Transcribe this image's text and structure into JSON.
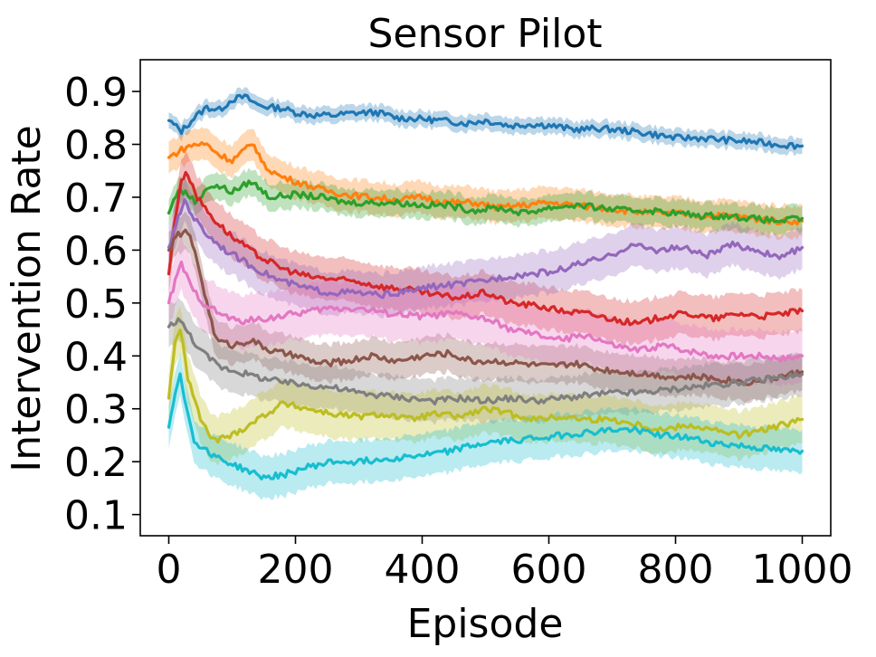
{
  "chart_data": {
    "type": "line",
    "title": "Sensor Pilot",
    "xlabel": "Episode",
    "ylabel": "Intervention Rate",
    "xlim": [
      -45,
      1045
    ],
    "ylim": [
      0.06,
      0.96
    ],
    "xticks": [
      0,
      200,
      400,
      600,
      800,
      1000
    ],
    "yticks": [
      0.1,
      0.2,
      0.3,
      0.4,
      0.5,
      0.6,
      0.7,
      0.8,
      0.9
    ],
    "xtick_labels": [
      "0",
      "200",
      "400",
      "600",
      "800",
      "1000"
    ],
    "ytick_labels": [
      "0.1",
      "0.2",
      "0.3",
      "0.4",
      "0.5",
      "0.6",
      "0.7",
      "0.8",
      "0.9"
    ],
    "grid": false,
    "legend": "none",
    "series": [
      {
        "color": "#1f77b4",
        "band": 0.015,
        "points": [
          [
            0,
            0.845
          ],
          [
            20,
            0.825
          ],
          [
            40,
            0.85
          ],
          [
            60,
            0.87
          ],
          [
            80,
            0.865
          ],
          [
            100,
            0.885
          ],
          [
            120,
            0.89
          ],
          [
            140,
            0.875
          ],
          [
            160,
            0.87
          ],
          [
            180,
            0.868
          ],
          [
            200,
            0.86
          ],
          [
            230,
            0.855
          ],
          [
            260,
            0.855
          ],
          [
            300,
            0.86
          ],
          [
            330,
            0.86
          ],
          [
            360,
            0.85
          ],
          [
            400,
            0.848
          ],
          [
            430,
            0.845
          ],
          [
            470,
            0.84
          ],
          [
            500,
            0.845
          ],
          [
            540,
            0.835
          ],
          [
            570,
            0.838
          ],
          [
            600,
            0.836
          ],
          [
            640,
            0.828
          ],
          [
            680,
            0.83
          ],
          [
            720,
            0.826
          ],
          [
            760,
            0.82
          ],
          [
            800,
            0.812
          ],
          [
            840,
            0.812
          ],
          [
            880,
            0.808
          ],
          [
            920,
            0.805
          ],
          [
            960,
            0.8
          ],
          [
            1000,
            0.797
          ]
        ]
      },
      {
        "color": "#ff7f0e",
        "band": 0.03,
        "points": [
          [
            0,
            0.775
          ],
          [
            20,
            0.79
          ],
          [
            40,
            0.8
          ],
          [
            60,
            0.8
          ],
          [
            80,
            0.78
          ],
          [
            100,
            0.77
          ],
          [
            120,
            0.79
          ],
          [
            135,
            0.8
          ],
          [
            150,
            0.76
          ],
          [
            175,
            0.74
          ],
          [
            200,
            0.73
          ],
          [
            240,
            0.715
          ],
          [
            280,
            0.705
          ],
          [
            320,
            0.7
          ],
          [
            360,
            0.695
          ],
          [
            400,
            0.7
          ],
          [
            440,
            0.69
          ],
          [
            480,
            0.69
          ],
          [
            520,
            0.68
          ],
          [
            560,
            0.685
          ],
          [
            600,
            0.69
          ],
          [
            640,
            0.685
          ],
          [
            680,
            0.68
          ],
          [
            720,
            0.675
          ],
          [
            760,
            0.67
          ],
          [
            800,
            0.67
          ],
          [
            840,
            0.665
          ],
          [
            880,
            0.665
          ],
          [
            920,
            0.66
          ],
          [
            960,
            0.655
          ],
          [
            1000,
            0.655
          ]
        ]
      },
      {
        "color": "#2ca02c",
        "band": 0.025,
        "points": [
          [
            0,
            0.67
          ],
          [
            15,
            0.715
          ],
          [
            30,
            0.705
          ],
          [
            45,
            0.69
          ],
          [
            60,
            0.72
          ],
          [
            80,
            0.72
          ],
          [
            100,
            0.71
          ],
          [
            130,
            0.73
          ],
          [
            160,
            0.7
          ],
          [
            200,
            0.705
          ],
          [
            240,
            0.7
          ],
          [
            280,
            0.69
          ],
          [
            320,
            0.69
          ],
          [
            360,
            0.69
          ],
          [
            400,
            0.685
          ],
          [
            440,
            0.685
          ],
          [
            480,
            0.675
          ],
          [
            520,
            0.68
          ],
          [
            560,
            0.67
          ],
          [
            600,
            0.68
          ],
          [
            640,
            0.685
          ],
          [
            680,
            0.68
          ],
          [
            720,
            0.675
          ],
          [
            760,
            0.675
          ],
          [
            800,
            0.67
          ],
          [
            840,
            0.665
          ],
          [
            880,
            0.665
          ],
          [
            920,
            0.66
          ],
          [
            960,
            0.655
          ],
          [
            1000,
            0.66
          ]
        ]
      },
      {
        "color": "#d62728",
        "band": 0.04,
        "points": [
          [
            0,
            0.555
          ],
          [
            10,
            0.66
          ],
          [
            20,
            0.735
          ],
          [
            30,
            0.745
          ],
          [
            45,
            0.7
          ],
          [
            70,
            0.66
          ],
          [
            100,
            0.625
          ],
          [
            140,
            0.59
          ],
          [
            180,
            0.565
          ],
          [
            220,
            0.55
          ],
          [
            260,
            0.545
          ],
          [
            300,
            0.54
          ],
          [
            340,
            0.53
          ],
          [
            380,
            0.525
          ],
          [
            420,
            0.515
          ],
          [
            460,
            0.51
          ],
          [
            500,
            0.52
          ],
          [
            540,
            0.5
          ],
          [
            580,
            0.495
          ],
          [
            620,
            0.485
          ],
          [
            660,
            0.48
          ],
          [
            700,
            0.47
          ],
          [
            740,
            0.46
          ],
          [
            780,
            0.475
          ],
          [
            820,
            0.48
          ],
          [
            860,
            0.47
          ],
          [
            900,
            0.48
          ],
          [
            940,
            0.475
          ],
          [
            970,
            0.48
          ],
          [
            1000,
            0.485
          ]
        ]
      },
      {
        "color": "#9467bd",
        "band": 0.04,
        "points": [
          [
            0,
            0.605
          ],
          [
            15,
            0.66
          ],
          [
            25,
            0.695
          ],
          [
            40,
            0.66
          ],
          [
            60,
            0.63
          ],
          [
            90,
            0.6
          ],
          [
            130,
            0.57
          ],
          [
            170,
            0.545
          ],
          [
            210,
            0.53
          ],
          [
            250,
            0.52
          ],
          [
            290,
            0.52
          ],
          [
            330,
            0.515
          ],
          [
            370,
            0.52
          ],
          [
            410,
            0.53
          ],
          [
            450,
            0.535
          ],
          [
            490,
            0.54
          ],
          [
            530,
            0.55
          ],
          [
            570,
            0.555
          ],
          [
            610,
            0.56
          ],
          [
            650,
            0.575
          ],
          [
            690,
            0.585
          ],
          [
            730,
            0.61
          ],
          [
            770,
            0.6
          ],
          [
            810,
            0.605
          ],
          [
            850,
            0.59
          ],
          [
            890,
            0.61
          ],
          [
            930,
            0.6
          ],
          [
            960,
            0.585
          ],
          [
            1000,
            0.605
          ]
        ]
      },
      {
        "color": "#8c564b",
        "band": 0.035,
        "points": [
          [
            0,
            0.6
          ],
          [
            15,
            0.63
          ],
          [
            30,
            0.635
          ],
          [
            45,
            0.58
          ],
          [
            60,
            0.5
          ],
          [
            75,
            0.43
          ],
          [
            100,
            0.42
          ],
          [
            130,
            0.43
          ],
          [
            160,
            0.41
          ],
          [
            200,
            0.4
          ],
          [
            240,
            0.385
          ],
          [
            280,
            0.39
          ],
          [
            320,
            0.4
          ],
          [
            360,
            0.39
          ],
          [
            400,
            0.4
          ],
          [
            440,
            0.405
          ],
          [
            480,
            0.39
          ],
          [
            520,
            0.39
          ],
          [
            560,
            0.385
          ],
          [
            600,
            0.38
          ],
          [
            640,
            0.385
          ],
          [
            680,
            0.375
          ],
          [
            720,
            0.37
          ],
          [
            760,
            0.365
          ],
          [
            800,
            0.36
          ],
          [
            840,
            0.36
          ],
          [
            880,
            0.355
          ],
          [
            920,
            0.35
          ],
          [
            960,
            0.36
          ],
          [
            1000,
            0.37
          ]
        ]
      },
      {
        "color": "#e377c2",
        "band": 0.05,
        "points": [
          [
            0,
            0.5
          ],
          [
            10,
            0.54
          ],
          [
            20,
            0.575
          ],
          [
            35,
            0.53
          ],
          [
            55,
            0.5
          ],
          [
            80,
            0.48
          ],
          [
            110,
            0.465
          ],
          [
            150,
            0.47
          ],
          [
            200,
            0.48
          ],
          [
            250,
            0.49
          ],
          [
            300,
            0.49
          ],
          [
            350,
            0.48
          ],
          [
            400,
            0.475
          ],
          [
            450,
            0.48
          ],
          [
            500,
            0.47
          ],
          [
            540,
            0.45
          ],
          [
            580,
            0.44
          ],
          [
            620,
            0.43
          ],
          [
            660,
            0.44
          ],
          [
            700,
            0.42
          ],
          [
            740,
            0.41
          ],
          [
            780,
            0.42
          ],
          [
            820,
            0.41
          ],
          [
            860,
            0.4
          ],
          [
            900,
            0.4
          ],
          [
            940,
            0.4
          ],
          [
            970,
            0.395
          ],
          [
            1000,
            0.4
          ]
        ]
      },
      {
        "color": "#7f7f7f",
        "band": 0.04,
        "points": [
          [
            0,
            0.455
          ],
          [
            15,
            0.47
          ],
          [
            30,
            0.445
          ],
          [
            50,
            0.41
          ],
          [
            80,
            0.38
          ],
          [
            110,
            0.37
          ],
          [
            140,
            0.36
          ],
          [
            180,
            0.35
          ],
          [
            220,
            0.345
          ],
          [
            260,
            0.34
          ],
          [
            300,
            0.33
          ],
          [
            340,
            0.325
          ],
          [
            380,
            0.32
          ],
          [
            420,
            0.315
          ],
          [
            460,
            0.32
          ],
          [
            500,
            0.315
          ],
          [
            540,
            0.32
          ],
          [
            580,
            0.315
          ],
          [
            620,
            0.32
          ],
          [
            660,
            0.325
          ],
          [
            700,
            0.33
          ],
          [
            740,
            0.33
          ],
          [
            780,
            0.335
          ],
          [
            820,
            0.34
          ],
          [
            860,
            0.345
          ],
          [
            900,
            0.35
          ],
          [
            940,
            0.355
          ],
          [
            970,
            0.36
          ],
          [
            1000,
            0.365
          ]
        ]
      },
      {
        "color": "#bcbd22",
        "band": 0.045,
        "points": [
          [
            0,
            0.32
          ],
          [
            10,
            0.43
          ],
          [
            18,
            0.45
          ],
          [
            30,
            0.36
          ],
          [
            50,
            0.28
          ],
          [
            70,
            0.24
          ],
          [
            100,
            0.25
          ],
          [
            140,
            0.28
          ],
          [
            180,
            0.31
          ],
          [
            220,
            0.3
          ],
          [
            260,
            0.29
          ],
          [
            300,
            0.285
          ],
          [
            340,
            0.29
          ],
          [
            380,
            0.28
          ],
          [
            420,
            0.29
          ],
          [
            460,
            0.285
          ],
          [
            500,
            0.3
          ],
          [
            540,
            0.29
          ],
          [
            580,
            0.28
          ],
          [
            620,
            0.285
          ],
          [
            660,
            0.28
          ],
          [
            700,
            0.28
          ],
          [
            740,
            0.27
          ],
          [
            780,
            0.26
          ],
          [
            820,
            0.27
          ],
          [
            860,
            0.26
          ],
          [
            900,
            0.25
          ],
          [
            940,
            0.26
          ],
          [
            970,
            0.27
          ],
          [
            1000,
            0.28
          ]
        ]
      },
      {
        "color": "#17becf",
        "band": 0.04,
        "points": [
          [
            0,
            0.265
          ],
          [
            10,
            0.33
          ],
          [
            18,
            0.37
          ],
          [
            28,
            0.3
          ],
          [
            40,
            0.24
          ],
          [
            60,
            0.22
          ],
          [
            90,
            0.2
          ],
          [
            120,
            0.185
          ],
          [
            150,
            0.17
          ],
          [
            180,
            0.175
          ],
          [
            220,
            0.19
          ],
          [
            260,
            0.2
          ],
          [
            300,
            0.2
          ],
          [
            340,
            0.205
          ],
          [
            380,
            0.21
          ],
          [
            420,
            0.215
          ],
          [
            460,
            0.225
          ],
          [
            500,
            0.235
          ],
          [
            540,
            0.24
          ],
          [
            580,
            0.245
          ],
          [
            620,
            0.25
          ],
          [
            660,
            0.255
          ],
          [
            700,
            0.26
          ],
          [
            740,
            0.26
          ],
          [
            780,
            0.25
          ],
          [
            820,
            0.245
          ],
          [
            860,
            0.235
          ],
          [
            900,
            0.23
          ],
          [
            940,
            0.225
          ],
          [
            970,
            0.22
          ],
          [
            1000,
            0.22
          ]
        ]
      }
    ]
  }
}
